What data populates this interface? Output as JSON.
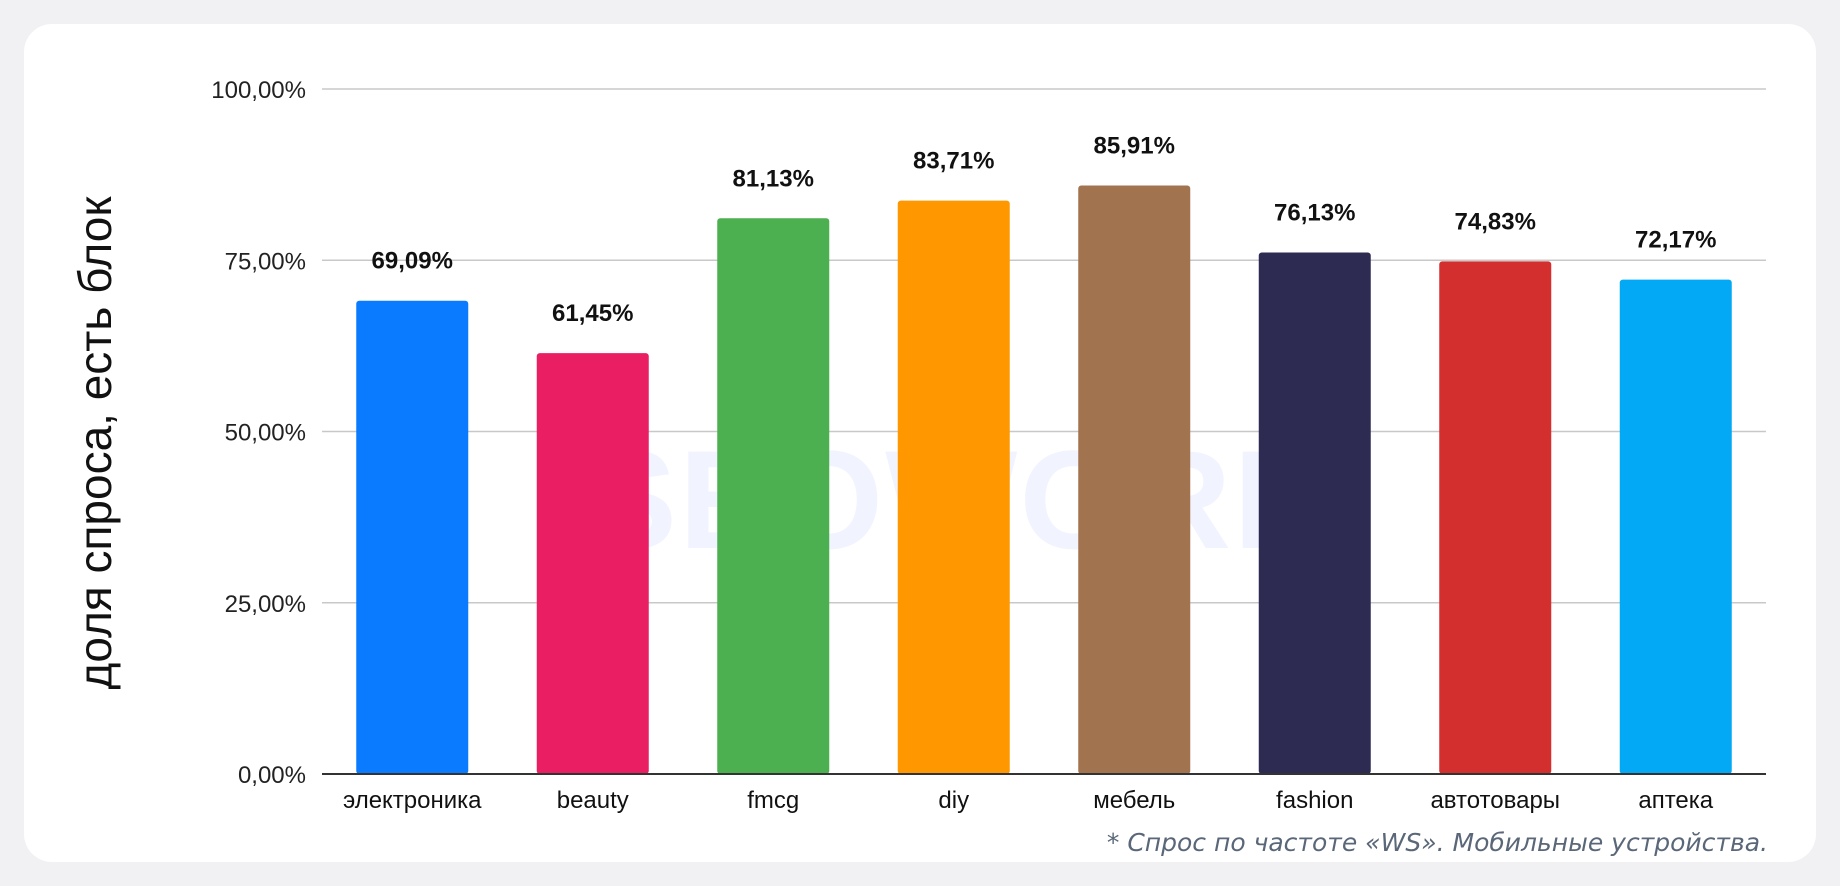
{
  "chart_data": {
    "type": "bar",
    "ylabel": "доля спроса, есть блок",
    "categories": [
      "электроника",
      "beauty",
      "fmcg",
      "diy",
      "мебель",
      "fashion",
      "автотовары",
      "аптека"
    ],
    "values": [
      69.09,
      61.45,
      81.13,
      83.71,
      85.91,
      76.13,
      74.83,
      72.17
    ],
    "value_labels": [
      "69,09%",
      "61,45%",
      "81,13%",
      "83,71%",
      "85,91%",
      "76,13%",
      "74,83%",
      "72,17%"
    ],
    "colors": [
      "#0a7bff",
      "#e91e63",
      "#4caf50",
      "#ff9800",
      "#a1744f",
      "#2d2b52",
      "#d32f2f",
      "#03a9f4"
    ],
    "ylim": [
      0,
      100
    ],
    "yticks": [
      0,
      25,
      50,
      75,
      100
    ],
    "ytick_labels": [
      "0,00%",
      "25,00%",
      "50,00%",
      "75,00%",
      "100,00%"
    ],
    "grid": true
  },
  "footnote": "* Спрос по частоте «WS». Мобильные устройства.",
  "watermark": "SEOWORK"
}
